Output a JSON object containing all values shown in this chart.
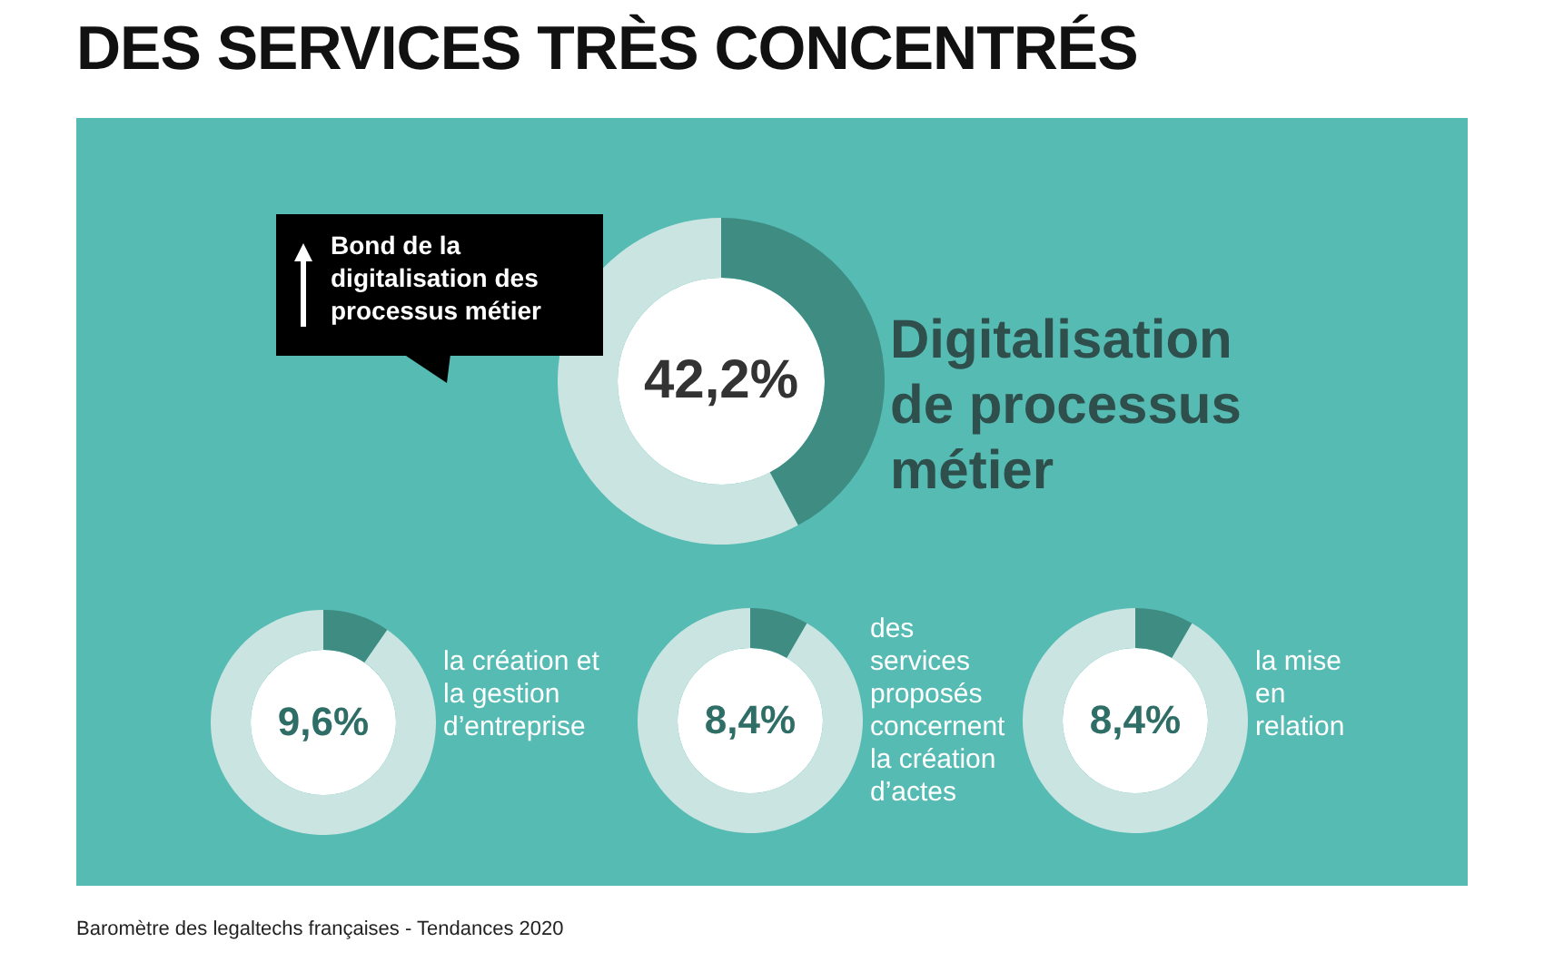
{
  "chart_data": [
    {
      "type": "donut",
      "title": "DES SERVICES TRÈS CONCENTRÉS",
      "categories": [
        "Digitalisation de processus métier",
        null
      ],
      "values": [
        42.2,
        57.8
      ],
      "colors": [
        "#3f8c83",
        "#c9e4e1"
      ],
      "value_labels": [
        "42,2%",
        null
      ],
      "annotations": [
        "Bond de la digitalisation des processus métier",
        "Baromètre des legaltechs françaises - Tendances 2020"
      ]
    },
    {
      "type": "donut",
      "categories": [
        null,
        null
      ],
      "values": [
        9.6,
        90.4
      ],
      "colors": [
        "#3f8c83",
        "#c9e4e1"
      ],
      "value_labels": [
        "9,6%",
        null
      ],
      "annotations": [
        "la création et la gestion d’entreprise"
      ]
    },
    {
      "type": "donut",
      "categories": [
        null,
        null
      ],
      "values": [
        8.4,
        91.6
      ],
      "colors": [
        "#3f8c83",
        "#c9e4e1"
      ],
      "value_labels": [
        "8,4%",
        null
      ],
      "annotations": [
        "des services proposés concernent la création d’actes"
      ]
    },
    {
      "type": "donut",
      "categories": [
        null,
        null
      ],
      "values": [
        8.4,
        91.6
      ],
      "colors": [
        "#3f8c83",
        "#c9e4e1"
      ],
      "value_labels": [
        "8,4%",
        null
      ],
      "annotations": [
        "la mise en relation"
      ]
    }
  ]
}
